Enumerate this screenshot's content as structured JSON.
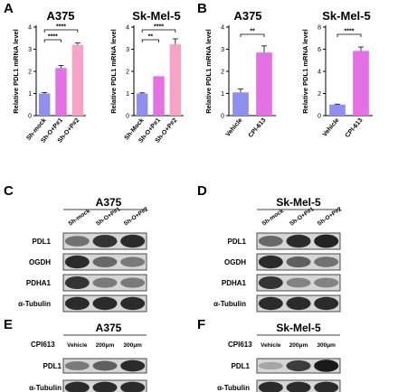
{
  "panels": {
    "A": "A",
    "B": "B",
    "C": "C",
    "D": "D",
    "E": "E",
    "F": "F"
  },
  "chart_data": [
    {
      "type": "bar",
      "panel": "A",
      "title": "A375",
      "ylabel": "Relative PDL1 mRNA level",
      "categories": [
        "Sh-mock",
        "Sh-O+P#1",
        "Sh-O+P#2"
      ],
      "values": [
        1.0,
        2.15,
        3.2
      ],
      "errors": [
        0.04,
        0.12,
        0.08
      ],
      "colors": [
        "#8f8ff0",
        "#e570e5",
        "#f7a3c8"
      ],
      "ylim": [
        0,
        4
      ],
      "yticks": [
        0,
        1,
        2,
        3,
        4
      ],
      "significance": [
        {
          "from": 0,
          "to": 1,
          "label": "****"
        },
        {
          "from": 0,
          "to": 2,
          "label": "****"
        }
      ]
    },
    {
      "type": "bar",
      "panel": "A",
      "title": "Sk-Mel-5",
      "ylabel": "Relative PDL1 mRNA level",
      "categories": [
        "Sh-Mock",
        "Sh-O+P#1",
        "Sh-O+P#2"
      ],
      "values": [
        1.0,
        1.78,
        3.22
      ],
      "errors": [
        0.03,
        0.0,
        0.25
      ],
      "colors": [
        "#8f8ff0",
        "#e570e5",
        "#f7a3c8"
      ],
      "ylim": [
        0,
        4
      ],
      "yticks": [
        0,
        1,
        2,
        3,
        4
      ],
      "significance": [
        {
          "from": 0,
          "to": 1,
          "label": "**"
        },
        {
          "from": 0,
          "to": 2,
          "label": "****"
        }
      ]
    },
    {
      "type": "bar",
      "panel": "B",
      "title": "A375",
      "ylabel": "Relative PDL1 mRNA level",
      "categories": [
        "Vehicle",
        "CPI-613"
      ],
      "values": [
        1.05,
        2.85
      ],
      "errors": [
        0.15,
        0.3
      ],
      "colors": [
        "#8f8ff0",
        "#e570e5"
      ],
      "ylim": [
        0,
        4
      ],
      "yticks": [
        0,
        1,
        2,
        3,
        4
      ],
      "significance": [
        {
          "from": 0,
          "to": 1,
          "label": "**"
        }
      ]
    },
    {
      "type": "bar",
      "panel": "B",
      "title": "Sk-Mel-5",
      "ylabel": "Relative PDL1 mRNA level",
      "categories": [
        "Vehicle",
        "CPI-613"
      ],
      "values": [
        1.0,
        5.85
      ],
      "errors": [
        0.04,
        0.35
      ],
      "colors": [
        "#8f8ff0",
        "#e570e5"
      ],
      "ylim": [
        0,
        8
      ],
      "yticks": [
        0,
        2,
        4,
        6,
        8
      ],
      "significance": [
        {
          "from": 0,
          "to": 1,
          "label": "****"
        }
      ]
    }
  ],
  "blots": {
    "C": {
      "title": "A375",
      "lanes": [
        "Sh-mock",
        "Sh-O+P#1",
        "Sh-O+P#2"
      ],
      "rows": [
        "PDL1",
        "OGDH",
        "PDHA1",
        "α-Tubulin"
      ],
      "band_intensity": [
        [
          0.5,
          0.85,
          0.9
        ],
        [
          0.9,
          0.55,
          0.45
        ],
        [
          0.85,
          0.45,
          0.45
        ],
        [
          0.9,
          0.9,
          0.9
        ]
      ]
    },
    "D": {
      "title": "Sk-Mel-5",
      "lanes": [
        "Sh-mock",
        "Sh-O+P#1",
        "Sh-O+P#2"
      ],
      "rows": [
        "PDL1",
        "OGDH",
        "PDHA1",
        "α-Tubulin"
      ],
      "band_intensity": [
        [
          0.55,
          0.9,
          0.95
        ],
        [
          0.9,
          0.6,
          0.5
        ],
        [
          0.85,
          0.4,
          0.4
        ],
        [
          0.9,
          0.9,
          0.9
        ]
      ]
    },
    "E": {
      "title": "A375",
      "treatment_label": "CPI613",
      "lanes": [
        "Vehicle",
        "200μm",
        "300μm"
      ],
      "rows": [
        "PDL1",
        "α-Tubulin"
      ],
      "band_intensity": [
        [
          0.45,
          0.6,
          0.9
        ],
        [
          0.9,
          0.9,
          0.9
        ]
      ]
    },
    "F": {
      "title": "Sk-Mel-5",
      "treatment_label": "CPI613",
      "lanes": [
        "Vehicle",
        "200μm",
        "300μm"
      ],
      "rows": [
        "PDL1",
        "α-Tubulin"
      ],
      "band_intensity": [
        [
          0.2,
          0.8,
          1.0
        ],
        [
          0.9,
          0.9,
          0.9
        ]
      ]
    }
  }
}
